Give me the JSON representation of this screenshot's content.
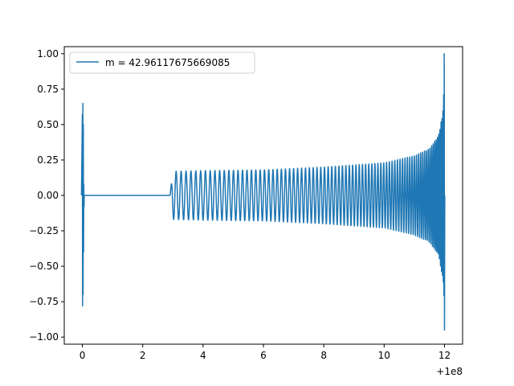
{
  "chart_data": {
    "type": "line",
    "title": "",
    "xlabel": "",
    "ylabel": "",
    "x_offset_label": "+1e8",
    "xlim": [
      -0.6,
      12.6
    ],
    "ylim": [
      -1.05,
      1.05
    ],
    "x_ticks": [
      0,
      2,
      4,
      6,
      8,
      10,
      12
    ],
    "x_tick_labels": [
      "0",
      "2",
      "4",
      "6",
      "8",
      "10",
      "12"
    ],
    "y_ticks": [
      -1.0,
      -0.75,
      -0.5,
      -0.25,
      0.0,
      0.25,
      0.5,
      0.75,
      1.0
    ],
    "y_tick_labels": [
      "−1.00",
      "−0.75",
      "−0.50",
      "−0.25",
      "0.00",
      "0.25",
      "0.50",
      "0.75",
      "1.00"
    ],
    "grid": false,
    "legend_position": "upper-left",
    "series": [
      {
        "name": "m = 42.96117675669085",
        "color": "#1f77b4",
        "envelope": {
          "x": [
            0.0,
            0.05,
            2.9,
            3.0,
            4.0,
            6.0,
            8.0,
            10.0,
            11.0,
            11.5,
            11.8,
            11.95,
            12.0
          ],
          "y_max": [
            0.65,
            0.08,
            0.0,
            0.17,
            0.175,
            0.18,
            0.2,
            0.23,
            0.28,
            0.33,
            0.42,
            0.6,
            1.0
          ],
          "y_min": [
            -0.78,
            -0.08,
            0.0,
            -0.17,
            -0.175,
            -0.18,
            -0.2,
            -0.23,
            -0.28,
            -0.33,
            -0.42,
            -0.6,
            -0.95
          ]
        }
      }
    ]
  }
}
